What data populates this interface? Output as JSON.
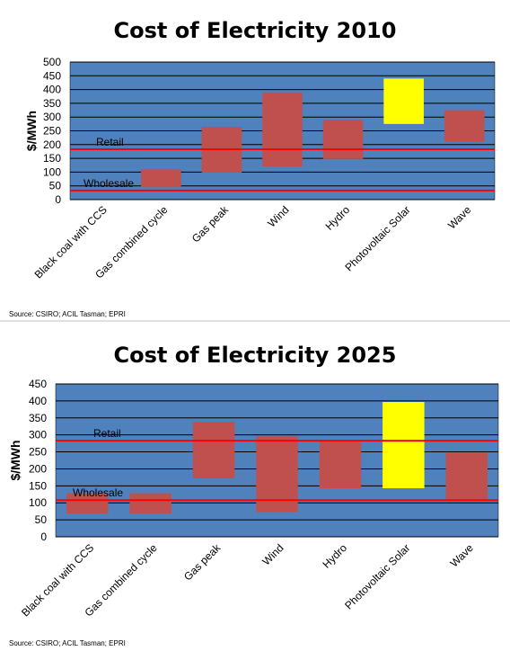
{
  "chart_data": [
    {
      "type": "bar",
      "subtype": "floating-range",
      "title": "Cost of Electricity 2010",
      "ylabel": "$/MWh",
      "xlabel": "",
      "ylim": [
        0,
        500
      ],
      "yticks": [
        0,
        50,
        100,
        150,
        200,
        250,
        300,
        350,
        400,
        450,
        500
      ],
      "grid": true,
      "categories": [
        "Black coal with CCS",
        "Gas combined cycle",
        "Gas peak",
        "Wind",
        "Hydro",
        "Photovoltaic Solar",
        "Wave"
      ],
      "ranges": [
        null,
        [
          45,
          110
        ],
        [
          98,
          265
        ],
        [
          120,
          390
        ],
        [
          148,
          290
        ],
        [
          275,
          440
        ],
        [
          210,
          325
        ]
      ],
      "bar_colors": [
        "#c0504d",
        "#c0504d",
        "#c0504d",
        "#c0504d",
        "#c0504d",
        "#ffff00",
        "#c0504d"
      ],
      "reference_lines": [
        {
          "label": "Retail",
          "value": 183,
          "color": "#ff0000"
        },
        {
          "label": "Wholesale",
          "value": 33,
          "color": "#ff0000"
        }
      ],
      "source": "Source:  CSIRO; ACIL Tasman; EPRI",
      "plot_color": "#4f81bd"
    },
    {
      "type": "bar",
      "subtype": "floating-range",
      "title": "Cost of Electricity 2025",
      "ylabel": "$/MWh",
      "xlabel": "",
      "ylim": [
        0,
        450
      ],
      "yticks": [
        0,
        50,
        100,
        150,
        200,
        250,
        300,
        350,
        400,
        450
      ],
      "grid": true,
      "categories": [
        "Black coal with CCS",
        "Gas combined cycle",
        "Gas peak",
        "Wind",
        "Hydro",
        "Photovoltaic Solar",
        "Wave"
      ],
      "ranges": [
        [
          68,
          128
        ],
        [
          68,
          128
        ],
        [
          172,
          338
        ],
        [
          73,
          297
        ],
        [
          143,
          285
        ],
        [
          143,
          397
        ],
        [
          110,
          247
        ]
      ],
      "bar_colors": [
        "#c0504d",
        "#c0504d",
        "#c0504d",
        "#c0504d",
        "#c0504d",
        "#ffff00",
        "#c0504d"
      ],
      "reference_lines": [
        {
          "label": "Retail",
          "value": 283,
          "color": "#ff0000"
        },
        {
          "label": "Wholesale",
          "value": 108,
          "color": "#ff0000"
        }
      ],
      "source": "Source:  CSIRO; ACIL Tasman; EPRI",
      "plot_color": "#4f81bd"
    }
  ]
}
